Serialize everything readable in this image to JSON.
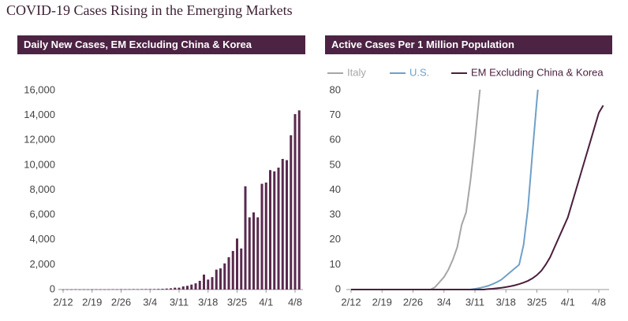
{
  "title": "COVID-19 Cases Rising in the Emerging Markets",
  "chart_data": [
    {
      "type": "bar",
      "title": "Daily New Cases, EM Excluding China & Korea",
      "color": "#5a2a4f",
      "categories": [
        "2/12",
        null,
        null,
        null,
        null,
        null,
        null,
        "2/19",
        null,
        null,
        null,
        null,
        null,
        null,
        "2/26",
        null,
        null,
        null,
        null,
        null,
        null,
        "3/4",
        null,
        null,
        null,
        null,
        null,
        null,
        "3/11",
        null,
        null,
        null,
        null,
        null,
        null,
        "3/18",
        null,
        null,
        null,
        null,
        null,
        null,
        "3/25",
        null,
        null,
        null,
        null,
        null,
        null,
        "4/1",
        null,
        null,
        null,
        null,
        null,
        null,
        "4/8",
        null
      ],
      "values": [
        10,
        15,
        10,
        20,
        10,
        15,
        10,
        15,
        20,
        15,
        10,
        20,
        25,
        20,
        30,
        25,
        30,
        35,
        30,
        35,
        40,
        40,
        40,
        50,
        60,
        80,
        100,
        150,
        150,
        250,
        300,
        400,
        500,
        700,
        1200,
        800,
        1000,
        1600,
        1700,
        2100,
        2600,
        3100,
        4100,
        3300,
        8300,
        5800,
        6200,
        5800,
        8500,
        8600,
        9600,
        9500,
        9800,
        10500,
        10400,
        12400,
        14100,
        14400
      ],
      "ylim": [
        0,
        16000
      ],
      "yticks": [
        0,
        {
          "value": 2000,
          "label": "2,000"
        },
        {
          "value": 4000,
          "label": "4,000"
        },
        {
          "value": 6000,
          "label": "6,000"
        },
        {
          "value": 8000,
          "label": "8,000"
        },
        {
          "value": 10000,
          "label": "10,000"
        },
        {
          "value": 12000,
          "label": "12,000"
        },
        {
          "value": 14000,
          "label": "14,000"
        },
        {
          "value": 16000,
          "label": "16,000"
        }
      ],
      "grid": false
    },
    {
      "type": "line",
      "title": "Active Cases Per 1 Million Population",
      "legend": "top",
      "categories": [
        "2/12",
        null,
        null,
        null,
        null,
        null,
        null,
        "2/19",
        null,
        null,
        null,
        null,
        null,
        null,
        "2/26",
        null,
        null,
        null,
        null,
        null,
        null,
        "3/4",
        null,
        null,
        null,
        null,
        null,
        null,
        "3/11",
        null,
        null,
        null,
        null,
        null,
        null,
        "3/18",
        null,
        null,
        null,
        null,
        null,
        null,
        "3/25",
        null,
        null,
        null,
        null,
        null,
        null,
        "4/1",
        null,
        null,
        null,
        null,
        null,
        null,
        "4/8",
        null
      ],
      "series": [
        {
          "name": "Italy",
          "color": "#a6a6a6",
          "values": [
            0,
            0,
            0,
            0,
            0,
            0,
            0,
            0,
            0,
            0,
            0,
            0,
            0,
            0,
            0,
            0,
            0,
            0,
            0,
            1,
            3,
            5,
            8,
            12,
            17,
            26,
            31,
            44,
            60,
            78,
            95,
            null,
            null,
            null,
            null,
            null,
            null,
            null,
            null,
            null,
            null,
            null,
            null,
            null,
            null,
            null,
            null,
            null,
            null,
            null,
            null,
            null,
            null,
            null,
            null,
            null,
            null,
            null
          ]
        },
        {
          "name": "U.S.",
          "color": "#6fa0c8",
          "values": [
            0,
            0,
            0,
            0,
            0,
            0,
            0,
            0,
            0,
            0,
            0,
            0,
            0,
            0,
            0,
            0,
            0,
            0,
            0,
            0,
            0,
            0,
            0,
            0,
            0,
            0,
            0,
            0,
            0.3,
            0.6,
            1,
            1.5,
            2.2,
            3,
            4,
            5.5,
            7,
            8.5,
            10,
            18,
            33,
            55,
            76,
            95,
            null,
            null,
            null,
            null,
            null,
            null,
            null,
            null,
            null,
            null,
            null,
            null,
            null,
            null
          ]
        },
        {
          "name": "EM Excluding China & Korea",
          "color": "#4a1f3d",
          "values": [
            0,
            0,
            0,
            0,
            0,
            0,
            0,
            0,
            0,
            0,
            0,
            0,
            0,
            0,
            0,
            0,
            0,
            0,
            0,
            0,
            0,
            0,
            0,
            0,
            0,
            0,
            0,
            0,
            0,
            0,
            0,
            0.2,
            0.3,
            0.5,
            0.7,
            1,
            1.3,
            1.7,
            2.2,
            2.8,
            3.5,
            4.5,
            5.8,
            7.5,
            10,
            13,
            17,
            21,
            25,
            29,
            35,
            41,
            47,
            53,
            59,
            65,
            71,
            74
          ]
        }
      ],
      "ylim": [
        0,
        80
      ],
      "yticks": [
        0,
        10,
        20,
        30,
        40,
        50,
        60,
        70,
        80
      ],
      "grid": false
    }
  ]
}
